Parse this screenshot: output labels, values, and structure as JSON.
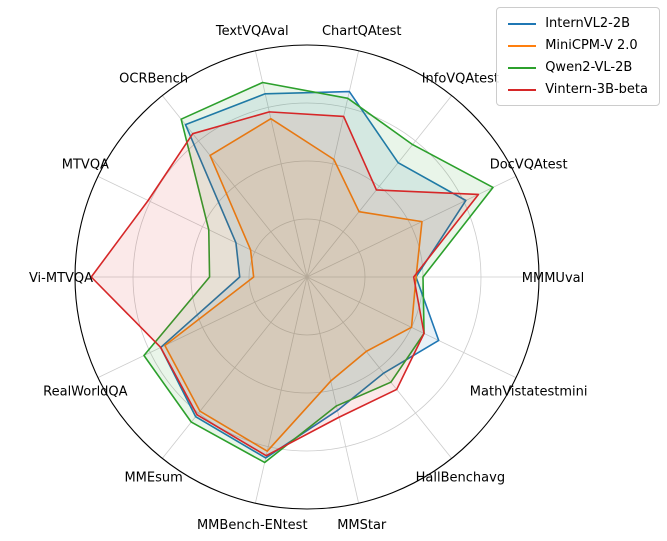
{
  "figure": {
    "background": "#ffffff",
    "grid_color": "#cccccc",
    "outer_ring_color": "#000000",
    "label_color": "#000000"
  },
  "chart_data": {
    "type": "radar",
    "title": "",
    "axes": [
      "ChartQAtest",
      "InfoVQAtest",
      "DocVQAtest",
      "MMMUval",
      "MathVistatestmini",
      "HallBenchavg",
      "MMStar",
      "MMBench-ENtest",
      "MMEsum",
      "RealWorldQA",
      "Vi-MTVQA",
      "MTVQA",
      "OCRBench",
      "TextVQAval"
    ],
    "series": [
      {
        "name": "InternVL2-2B",
        "color": "#1f77b4",
        "values": [
          82,
          63,
          76,
          47,
          63,
          53,
          59,
          80,
          77,
          70,
          29,
          34,
          84,
          81
        ]
      },
      {
        "name": "MiniCPM-V 2.0",
        "color": "#ff7f0e",
        "values": [
          52,
          36,
          55,
          47,
          50,
          41,
          46,
          77,
          74,
          68,
          23,
          27,
          67,
          70
        ]
      },
      {
        "name": "Qwen2-VL-2B",
        "color": "#2ca02c",
        "values": [
          79,
          73,
          89,
          50,
          56,
          58,
          57,
          82,
          80,
          78,
          42,
          47,
          87,
          86
        ]
      },
      {
        "name": "Vintern-3B-beta",
        "color": "#d62728",
        "values": [
          71,
          48,
          82,
          46,
          56,
          62,
          62,
          79,
          76,
          70,
          93,
          76,
          79,
          73
        ]
      }
    ],
    "value_scale": {
      "min": 0,
      "max": 100,
      "note": "radial rings are unlabeled; values estimated as percent of outer ring radius"
    },
    "grid": {
      "rings": [
        25,
        50,
        75
      ],
      "spokes": true
    },
    "legend_position": "top-right",
    "start_angle_deg": 77.142857,
    "direction": "clockwise",
    "fill_opacity": 0.1
  }
}
